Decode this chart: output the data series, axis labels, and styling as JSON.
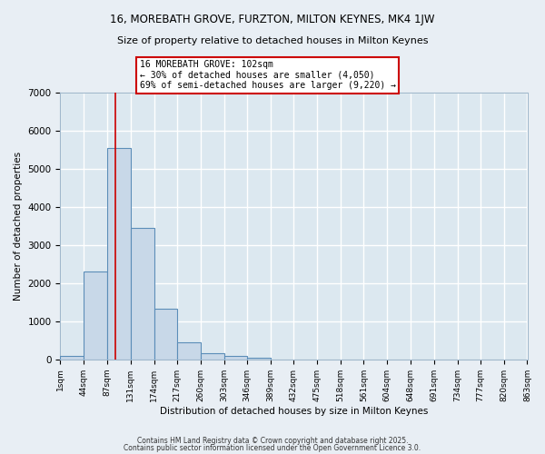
{
  "title1": "16, MOREBATH GROVE, FURZTON, MILTON KEYNES, MK4 1JW",
  "title2": "Size of property relative to detached houses in Milton Keynes",
  "xlabel": "Distribution of detached houses by size in Milton Keynes",
  "ylabel": "Number of detached properties",
  "bar_heights": [
    100,
    2300,
    5550,
    3450,
    1330,
    450,
    160,
    80,
    50,
    0,
    0,
    0,
    0,
    0,
    0,
    0,
    0,
    0,
    0,
    0
  ],
  "bin_edges": [
    1,
    44,
    87,
    131,
    174,
    217,
    260,
    303,
    346,
    389,
    432,
    475,
    518,
    561,
    604,
    648,
    691,
    734,
    777,
    820,
    863
  ],
  "tick_labels": [
    "1sqm",
    "44sqm",
    "87sqm",
    "131sqm",
    "174sqm",
    "217sqm",
    "260sqm",
    "303sqm",
    "346sqm",
    "389sqm",
    "432sqm",
    "475sqm",
    "518sqm",
    "561sqm",
    "604sqm",
    "648sqm",
    "691sqm",
    "734sqm",
    "777sqm",
    "820sqm",
    "863sqm"
  ],
  "bar_color": "#c8d8e8",
  "bar_edge_color": "#5b8db8",
  "vline_x": 102,
  "vline_color": "#cc0000",
  "annotation_text": "16 MOREBATH GROVE: 102sqm\n← 30% of detached houses are smaller (4,050)\n69% of semi-detached houses are larger (9,220) →",
  "annotation_box_color": "#cc0000",
  "ylim": [
    0,
    7000
  ],
  "yticks": [
    0,
    1000,
    2000,
    3000,
    4000,
    5000,
    6000,
    7000
  ],
  "background_color": "#dce8f0",
  "grid_color": "#ffffff",
  "fig_background": "#e8eef4",
  "footnote1": "Contains HM Land Registry data © Crown copyright and database right 2025.",
  "footnote2": "Contains public sector information licensed under the Open Government Licence 3.0."
}
